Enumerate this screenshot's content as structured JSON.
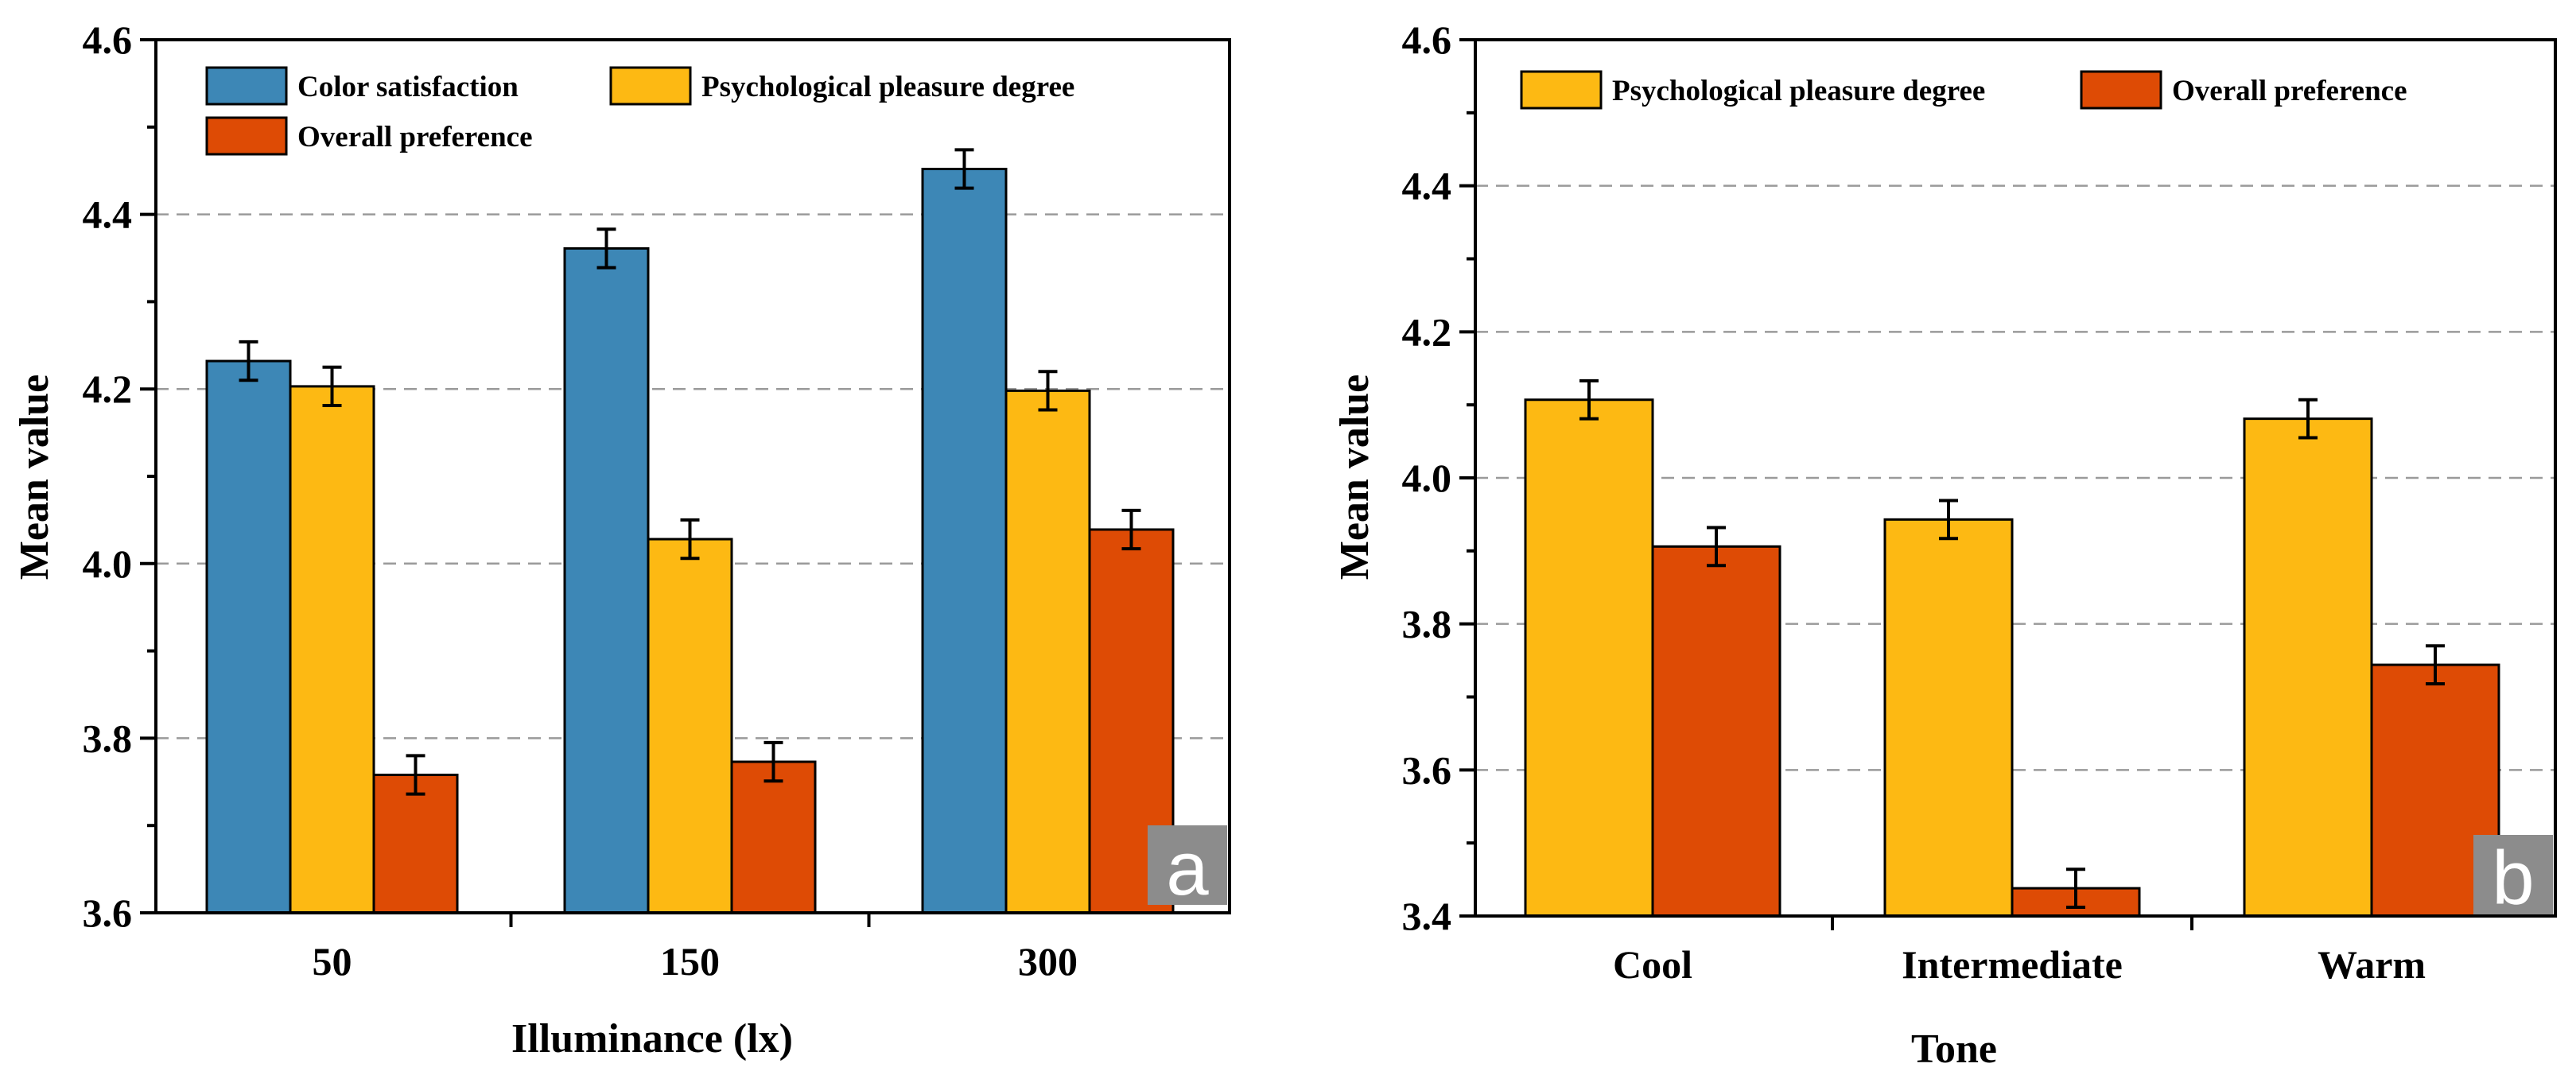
{
  "colors": {
    "color_satisfaction": "#3d87b6",
    "psychological_pleasure": "#fdb913",
    "overall_preference": "#de4b05",
    "panel_badge": "#8c8c8c"
  },
  "chart_data": [
    {
      "type": "bar",
      "panel_label": "a",
      "xlabel": "Illuminance (lx)",
      "ylabel": "Mean value",
      "categories": [
        "50",
        "150",
        "300"
      ],
      "ylim": [
        3.6,
        4.6
      ],
      "yticks": [
        "3.6",
        "3.8",
        "4.0",
        "4.2",
        "4.4",
        "4.6"
      ],
      "grid": true,
      "legend_position": "top-left",
      "series": [
        {
          "name": "Color satisfaction",
          "color_key": "color_satisfaction",
          "values": [
            4.232,
            4.361,
            4.452
          ],
          "errors": [
            0.022,
            0.022,
            0.022
          ]
        },
        {
          "name": "Psychological pleasure degree",
          "color_key": "psychological_pleasure",
          "values": [
            4.203,
            4.028,
            4.198
          ],
          "errors": [
            0.022,
            0.022,
            0.022
          ]
        },
        {
          "name": "Overall preference",
          "color_key": "overall_preference",
          "values": [
            3.758,
            3.773,
            4.039
          ],
          "errors": [
            0.022,
            0.022,
            0.022
          ]
        }
      ]
    },
    {
      "type": "bar",
      "panel_label": "b",
      "xlabel": "Tone",
      "ylabel": "Mean value",
      "categories": [
        "Cool",
        "Intermediate",
        "Warm"
      ],
      "ylim": [
        3.4,
        4.6
      ],
      "yticks": [
        "3.4",
        "3.6",
        "3.8",
        "4.0",
        "4.2",
        "4.4",
        "4.6"
      ],
      "grid": true,
      "legend_position": "top-left",
      "series": [
        {
          "name": "Psychological pleasure degree",
          "color_key": "psychological_pleasure",
          "values": [
            4.107,
            3.943,
            4.081
          ],
          "errors": [
            0.026,
            0.026,
            0.026
          ]
        },
        {
          "name": "Overall preference",
          "color_key": "overall_preference",
          "values": [
            3.906,
            3.438,
            3.744
          ],
          "errors": [
            0.026,
            0.026,
            0.026
          ]
        }
      ]
    }
  ]
}
